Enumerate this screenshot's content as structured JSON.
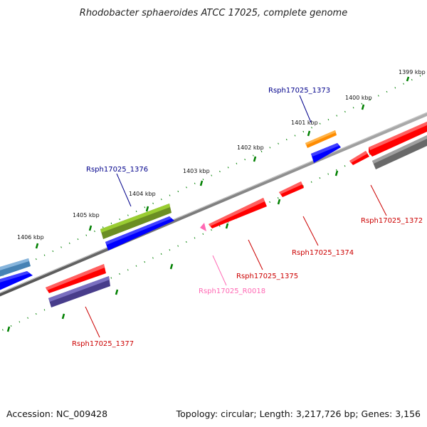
{
  "title": "Rhodobacter sphaeroides ATCC 17025, complete genome",
  "footer": {
    "accession": "Accession: NC_009428",
    "topology": "Topology: circular; Length: 3,217,726 bp; Genes: 3,156"
  },
  "ticks": [
    "1399 kbp",
    "1400 kbp",
    "1401 kbp",
    "1402 kbp",
    "1403 kbp",
    "1404 kbp",
    "1405 kbp",
    "1406 kbp"
  ],
  "labels": {
    "rsph1373": "Rsph17025_1373",
    "rsph1376": "Rsph17025_1376",
    "rsph1372": "Rsph17025_1372",
    "rsph1374": "Rsph17025_1374",
    "rsph1375": "Rsph17025_1375",
    "rsphR0018": "Rsph17025_R0018",
    "rsph1377": "Rsph17025_1377"
  },
  "colors": {
    "cds_forward": "#ff0000",
    "cds_reverse": "#0000ff",
    "orange": "#ff8c00",
    "olive": "#6b8e23",
    "steelblue": "#4682b4",
    "slate": "#483d8b",
    "gray": "#696969",
    "rna": "#ff69b4",
    "backbone": "#808080",
    "tick": "#008000",
    "label_blue": "#00008b",
    "label_red": "#cc0000",
    "label_pink": "#ff69b4"
  }
}
